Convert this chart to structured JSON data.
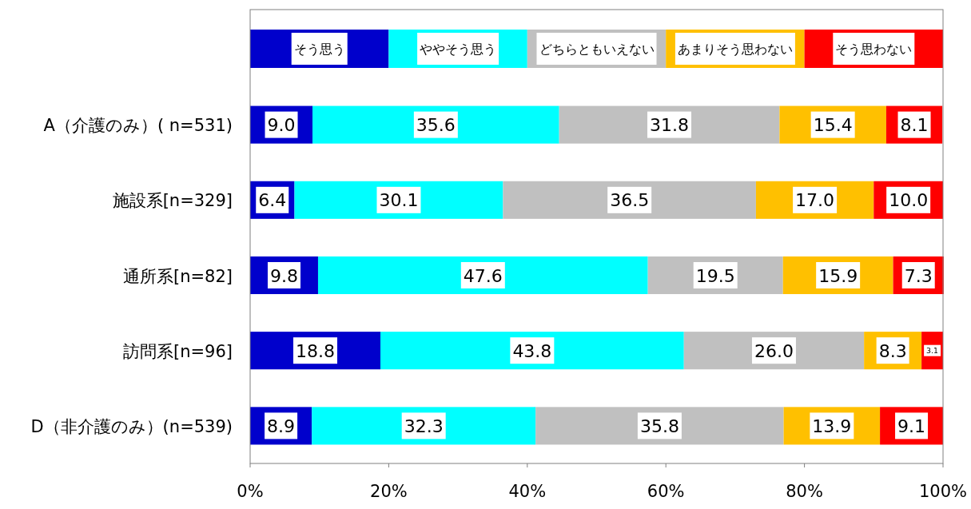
{
  "chart_data": {
    "type": "bar",
    "orientation": "horizontal",
    "stacked": true,
    "categories": [
      "A（介護のみ）( n=531)",
      "施設系[n=329]",
      "通所系[n=82]",
      "訪問系[n=96]",
      "D（非介護のみ）(n=539)"
    ],
    "series": [
      {
        "name": "そう思う",
        "color": "#0000cc",
        "values": [
          9.0,
          6.4,
          9.8,
          18.8,
          8.9
        ],
        "value_labels": [
          "9.0",
          "6.4",
          "9.8",
          "18.8",
          "8.9"
        ]
      },
      {
        "name": "ややそう思う",
        "color": "#00ffff",
        "values": [
          35.6,
          30.1,
          47.6,
          43.8,
          32.3
        ],
        "value_labels": [
          "35.6",
          "30.1",
          "47.6",
          "43.8",
          "32.3"
        ]
      },
      {
        "name": "どちらともいえない",
        "color": "#c0c0c0",
        "values": [
          31.8,
          36.5,
          19.5,
          26.0,
          35.8
        ],
        "value_labels": [
          "31.8",
          "36.5",
          "19.5",
          "26.0",
          "35.8"
        ]
      },
      {
        "name": "あまりそう思わない",
        "color": "#ffc000",
        "values": [
          15.4,
          17.0,
          15.9,
          8.3,
          13.9
        ],
        "value_labels": [
          "15.4",
          "17.0",
          "15.9",
          "8.3",
          "13.9"
        ]
      },
      {
        "name": "そう思わない",
        "color": "#ff0000",
        "values": [
          8.1,
          10.0,
          7.3,
          3.1,
          9.1
        ],
        "value_labels": [
          "8.1",
          "10.0",
          "7.3",
          "3.1",
          "9.1"
        ]
      }
    ],
    "xlim": [
      0,
      100
    ],
    "xticks": [
      {
        "value": 0,
        "label": "0%"
      },
      {
        "value": 20,
        "label": "20%"
      },
      {
        "value": 40,
        "label": "40%"
      },
      {
        "value": 60,
        "label": "60%"
      },
      {
        "value": 80,
        "label": "80%"
      },
      {
        "value": 100,
        "label": "100%"
      }
    ],
    "legend": "top",
    "grid": false
  }
}
